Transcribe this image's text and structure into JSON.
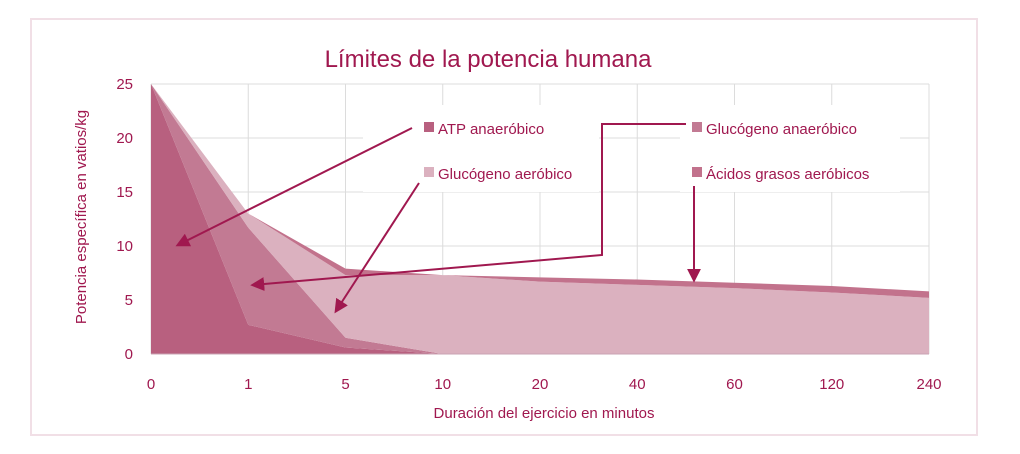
{
  "chart_data": {
    "type": "area",
    "title": "Límites de la potencia humana",
    "xlabel": "Duración del ejercicio en minutos",
    "ylabel": "Potencia específica en vatios/kg",
    "categories": [
      "0",
      "1",
      "5",
      "10",
      "20",
      "40",
      "60",
      "120",
      "240"
    ],
    "ylim": [
      0,
      25
    ],
    "yticks": [
      0,
      5,
      10,
      15,
      20,
      25
    ],
    "grid": true,
    "stacked": true,
    "legend_position": "top-right",
    "series": [
      {
        "name": "ATP anaeróbico",
        "color": "#b8607f",
        "values": [
          25,
          2.7,
          0.6,
          0.0,
          0,
          0,
          0,
          0,
          0
        ]
      },
      {
        "name": "Glucógeno anaeróbico",
        "color": "#c27a93",
        "values": [
          0,
          9.0,
          0.9,
          0.0,
          0,
          0,
          0,
          0,
          0
        ]
      },
      {
        "name": "Glucógeno aeróbico",
        "color": "#dbb1bf",
        "values": [
          0,
          1.3,
          5.8,
          7.3,
          6.7,
          6.4,
          6.1,
          5.7,
          5.2
        ]
      },
      {
        "name": "Ácidos grasos aeróbicos",
        "color": "#c2728c",
        "values": [
          0,
          0.0,
          0.6,
          0.0,
          0.4,
          0.5,
          0.5,
          0.6,
          0.6
        ]
      }
    ]
  }
}
